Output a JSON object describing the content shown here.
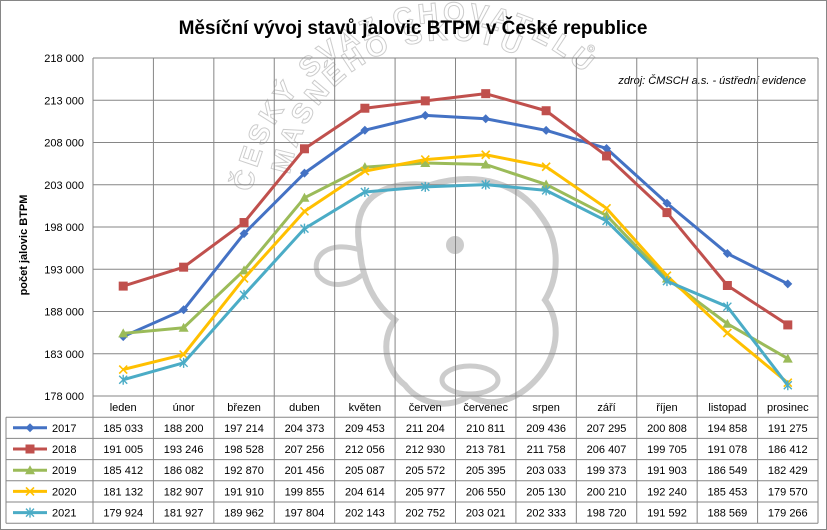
{
  "chart_data": {
    "type": "line",
    "title": "Měsíční vývoj stavů jalovic BTPM v České republice",
    "source_note": "zdroj: ČMSCH a.s. - ústřední evidence",
    "watermark_text": "ČESKÝ SVAZ CHOVATELŮ MASNÉHO SKOTU",
    "ylabel": "počet jalovic BTPM",
    "ylim": [
      178000,
      218000
    ],
    "ytick_labels": [
      "218 000",
      "213 000",
      "208 000",
      "203 000",
      "198 000",
      "193 000",
      "188 000",
      "183 000",
      "178 000"
    ],
    "grid": true,
    "legend": "data table",
    "categories": [
      "leden",
      "únor",
      "březen",
      "duben",
      "květen",
      "červen",
      "červenec",
      "srpen",
      "září",
      "říjen",
      "listopad",
      "prosinec"
    ],
    "series": [
      {
        "name": "2017",
        "color": "#4472C4",
        "marker": "diamond",
        "values": [
          185033,
          188200,
          197214,
          204373,
          209453,
          211204,
          210811,
          209436,
          207295,
          200808,
          194858,
          191275
        ],
        "labels": [
          "185 033",
          "188 200",
          "197 214",
          "204 373",
          "209 453",
          "211 204",
          "210 811",
          "209 436",
          "207 295",
          "200 808",
          "194 858",
          "191 275"
        ]
      },
      {
        "name": "2018",
        "color": "#C0504D",
        "marker": "square",
        "values": [
          191005,
          193246,
          198528,
          207256,
          212056,
          212930,
          213781,
          211758,
          206407,
          199705,
          191078,
          186412
        ],
        "labels": [
          "191 005",
          "193 246",
          "198 528",
          "207 256",
          "212 056",
          "212 930",
          "213 781",
          "211 758",
          "206 407",
          "199 705",
          "191 078",
          "186 412"
        ]
      },
      {
        "name": "2019",
        "color": "#9BBB59",
        "marker": "triangle",
        "values": [
          185412,
          186082,
          192870,
          201456,
          205087,
          205572,
          205395,
          203033,
          199373,
          191903,
          186549,
          182429
        ],
        "labels": [
          "185 412",
          "186 082",
          "192 870",
          "201 456",
          "205 087",
          "205 572",
          "205 395",
          "203 033",
          "199 373",
          "191 903",
          "186 549",
          "182 429"
        ]
      },
      {
        "name": "2020",
        "color": "#FFC000",
        "marker": "x",
        "values": [
          181132,
          182907,
          191910,
          199855,
          204614,
          205977,
          206550,
          205130,
          200210,
          192240,
          185453,
          179570
        ],
        "labels": [
          "181 132",
          "182 907",
          "191 910",
          "199 855",
          "204 614",
          "205 977",
          "206 550",
          "205 130",
          "200 210",
          "192 240",
          "185 453",
          "179 570"
        ]
      },
      {
        "name": "2021",
        "color": "#4BACC6",
        "marker": "star",
        "values": [
          179924,
          181927,
          189962,
          197804,
          202143,
          202752,
          203021,
          202333,
          198720,
          191592,
          188569,
          179266
        ],
        "labels": [
          "179 924",
          "181 927",
          "189 962",
          "197 804",
          "202 143",
          "202 752",
          "203 021",
          "202 333",
          "198 720",
          "191 592",
          "188 569",
          "179 266"
        ]
      }
    ]
  }
}
